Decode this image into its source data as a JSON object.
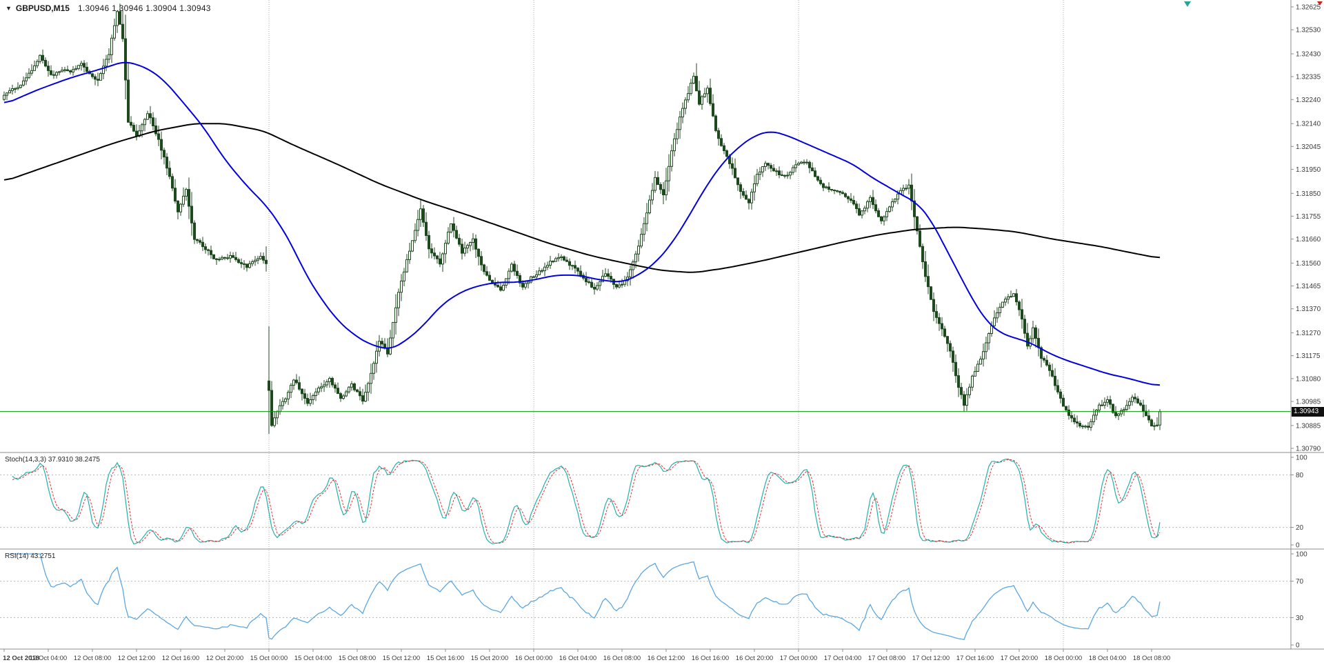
{
  "window": {
    "title": "GBPUSD,M15"
  },
  "header": {
    "symbol_label": "GBPUSD,M15",
    "ohlc_values": "1.30946 1.30946 1.30904 1.30943",
    "dropdown_glyph": "▼"
  },
  "colors": {
    "background": "#ffffff",
    "candle_border": "#1d4a1d",
    "candle_up_fill": "#ffffff",
    "candle_down_fill": "#1d4a1d",
    "ma_fast": "#0000e0",
    "ma_slow": "#000000",
    "bid_line": "#009900",
    "price_tag_bg": "#101010",
    "price_tag_text": "#ffffff",
    "grid_separator": "#a8a8a8",
    "pane_border": "#8c8c8c",
    "level_line": "#b5b5b5",
    "axis_text": "#3a3a3a",
    "stoch_main": "#20b2aa",
    "stoch_signal": "#e03030",
    "rsi_line": "#5aa7e0",
    "shift_marker": "#26a69a",
    "corner_marker": "#cc2222"
  },
  "chart_data": {
    "type": "candlestick",
    "symbol": "GBPUSD",
    "timeframe": "M15",
    "title": "GBPUSD,M15",
    "ohlc": {
      "open": "1.30946",
      "high": "1.30946",
      "low": "1.30904",
      "close": "1.30943"
    },
    "current_price": 1.30943,
    "current_price_label": "1.30943",
    "total_candles": 420,
    "candles_per_day": 96,
    "label_every_n_candles": 16,
    "price_axis_ticks": [
      "1.32625",
      "1.32530",
      "1.32430",
      "1.32335",
      "1.32240",
      "1.32140",
      "1.32045",
      "1.31950",
      "1.31850",
      "1.31755",
      "1.31660",
      "1.31560",
      "1.31465",
      "1.31370",
      "1.31270",
      "1.31175",
      "1.31080",
      "1.30985",
      "1.30885",
      "1.30790"
    ],
    "time_labels": [
      "12 Oct 2018",
      "12 Oct 04:00",
      "12 Oct 08:00",
      "12 Oct 12:00",
      "12 Oct 16:00",
      "12 Oct 20:00",
      "15 Oct 00:00",
      "15 Oct 04:00",
      "15 Oct 08:00",
      "15 Oct 12:00",
      "15 Oct 16:00",
      "15 Oct 20:00",
      "16 Oct 00:00",
      "16 Oct 04:00",
      "16 Oct 08:00",
      "16 Oct 12:00",
      "16 Oct 16:00",
      "16 Oct 20:00",
      "17 Oct 00:00",
      "17 Oct 04:00",
      "17 Oct 08:00",
      "17 Oct 12:00",
      "17 Oct 16:00",
      "17 Oct 20:00",
      "18 Oct 00:00",
      "18 Oct 04:00",
      "18 Oct 08:00"
    ],
    "day_separator_indices": [
      96,
      192,
      288,
      384
    ],
    "price_close_waypoints": [
      [
        0,
        1.3224
      ],
      [
        6,
        1.323
      ],
      [
        13,
        1.3243
      ],
      [
        17,
        1.3233
      ],
      [
        24,
        1.3236
      ],
      [
        28,
        1.324
      ],
      [
        34,
        1.3231
      ],
      [
        38,
        1.3242
      ],
      [
        41,
        1.326
      ],
      [
        43,
        1.325
      ],
      [
        45,
        1.3216
      ],
      [
        48,
        1.321
      ],
      [
        52,
        1.3218
      ],
      [
        56,
        1.3206
      ],
      [
        60,
        1.3192
      ],
      [
        63,
        1.3178
      ],
      [
        66,
        1.3188
      ],
      [
        69,
        1.3166
      ],
      [
        72,
        1.3162
      ],
      [
        76,
        1.3157
      ],
      [
        82,
        1.316
      ],
      [
        88,
        1.3154
      ],
      [
        93,
        1.3158
      ],
      [
        95,
        1.3156
      ],
      [
        96,
        1.3103
      ],
      [
        97,
        1.3089
      ],
      [
        99,
        1.3096
      ],
      [
        102,
        1.3101
      ],
      [
        105,
        1.3107
      ],
      [
        110,
        1.3097
      ],
      [
        114,
        1.3104
      ],
      [
        118,
        1.3109
      ],
      [
        122,
        1.31
      ],
      [
        126,
        1.3104
      ],
      [
        130,
        1.3098
      ],
      [
        133,
        1.3111
      ],
      [
        136,
        1.3125
      ],
      [
        139,
        1.3119
      ],
      [
        143,
        1.3143
      ],
      [
        147,
        1.316
      ],
      [
        151,
        1.3179
      ],
      [
        154,
        1.3163
      ],
      [
        158,
        1.3156
      ],
      [
        162,
        1.3171
      ],
      [
        166,
        1.316
      ],
      [
        170,
        1.3167
      ],
      [
        173,
        1.3156
      ],
      [
        176,
        1.3149
      ],
      [
        180,
        1.3143
      ],
      [
        184,
        1.3155
      ],
      [
        188,
        1.3147
      ],
      [
        191,
        1.3151
      ],
      [
        196,
        1.3153
      ],
      [
        201,
        1.3158
      ],
      [
        206,
        1.3156
      ],
      [
        210,
        1.3151
      ],
      [
        214,
        1.3144
      ],
      [
        218,
        1.3151
      ],
      [
        222,
        1.3146
      ],
      [
        226,
        1.3151
      ],
      [
        230,
        1.3163
      ],
      [
        233,
        1.3176
      ],
      [
        236,
        1.319
      ],
      [
        239,
        1.3184
      ],
      [
        242,
        1.3204
      ],
      [
        245,
        1.3218
      ],
      [
        248,
        1.3227
      ],
      [
        250,
        1.3233
      ],
      [
        252,
        1.3221
      ],
      [
        255,
        1.3228
      ],
      [
        258,
        1.3211
      ],
      [
        261,
        1.3204
      ],
      [
        264,
        1.3196
      ],
      [
        267,
        1.3185
      ],
      [
        270,
        1.318
      ],
      [
        273,
        1.3192
      ],
      [
        276,
        1.3198
      ],
      [
        280,
        1.3195
      ],
      [
        284,
        1.3192
      ],
      [
        287,
        1.3196
      ],
      [
        291,
        1.3197
      ],
      [
        296,
        1.319
      ],
      [
        301,
        1.3186
      ],
      [
        306,
        1.3182
      ],
      [
        310,
        1.3176
      ],
      [
        314,
        1.3184
      ],
      [
        318,
        1.3174
      ],
      [
        322,
        1.318
      ],
      [
        326,
        1.3186
      ],
      [
        328,
        1.3188
      ],
      [
        331,
        1.317
      ],
      [
        334,
        1.3152
      ],
      [
        337,
        1.3136
      ],
      [
        340,
        1.3128
      ],
      [
        343,
        1.3118
      ],
      [
        346,
        1.3104
      ],
      [
        348,
        1.3098
      ],
      [
        351,
        1.311
      ],
      [
        354,
        1.3117
      ],
      [
        358,
        1.3129
      ],
      [
        362,
        1.3139
      ],
      [
        366,
        1.3144
      ],
      [
        369,
        1.3134
      ],
      [
        371,
        1.3122
      ],
      [
        373,
        1.3129
      ],
      [
        376,
        1.3116
      ],
      [
        379,
        1.311
      ],
      [
        381,
        1.3105
      ],
      [
        384,
        1.3097
      ],
      [
        387,
        1.3093
      ],
      [
        390,
        1.3089
      ],
      [
        393,
        1.3087
      ],
      [
        396,
        1.3094
      ],
      [
        400,
        1.3099
      ],
      [
        403,
        1.3093
      ],
      [
        406,
        1.3097
      ],
      [
        409,
        1.3101
      ],
      [
        412,
        1.3096
      ],
      [
        414,
        1.3091
      ],
      [
        416,
        1.3087
      ],
      [
        418,
        1.3089
      ],
      [
        419,
        1.30943
      ]
    ],
    "overlays": [
      {
        "name": "ma-fast",
        "color": "#0000e0",
        "waypoints": [
          [
            0,
            1.3222
          ],
          [
            12,
            1.3228
          ],
          [
            24,
            1.3233
          ],
          [
            36,
            1.3237
          ],
          [
            44,
            1.324
          ],
          [
            52,
            1.3237
          ],
          [
            58,
            1.3232
          ],
          [
            64,
            1.3224
          ],
          [
            72,
            1.3213
          ],
          [
            80,
            1.3199
          ],
          [
            88,
            1.3188
          ],
          [
            95,
            1.318
          ],
          [
            100,
            1.3172
          ],
          [
            105,
            1.3162
          ],
          [
            109,
            1.3152
          ],
          [
            115,
            1.3141
          ],
          [
            121,
            1.3132
          ],
          [
            127,
            1.3126
          ],
          [
            133,
            1.3122
          ],
          [
            140,
            1.312
          ],
          [
            146,
            1.3124
          ],
          [
            152,
            1.313
          ],
          [
            158,
            1.3138
          ],
          [
            164,
            1.3143
          ],
          [
            170,
            1.3146
          ],
          [
            178,
            1.3148
          ],
          [
            186,
            1.3148
          ],
          [
            192,
            1.3149
          ],
          [
            200,
            1.3151
          ],
          [
            208,
            1.3151
          ],
          [
            216,
            1.3149
          ],
          [
            224,
            1.3148
          ],
          [
            230,
            1.3151
          ],
          [
            236,
            1.3156
          ],
          [
            242,
            1.3164
          ],
          [
            248,
            1.3175
          ],
          [
            254,
            1.3187
          ],
          [
            260,
            1.3197
          ],
          [
            266,
            1.3204
          ],
          [
            272,
            1.3209
          ],
          [
            278,
            1.3211
          ],
          [
            284,
            1.3209
          ],
          [
            290,
            1.3206
          ],
          [
            296,
            1.3203
          ],
          [
            302,
            1.32
          ],
          [
            308,
            1.3197
          ],
          [
            314,
            1.3192
          ],
          [
            320,
            1.3188
          ],
          [
            326,
            1.3184
          ],
          [
            331,
            1.3181
          ],
          [
            336,
            1.3174
          ],
          [
            341,
            1.3163
          ],
          [
            346,
            1.3152
          ],
          [
            351,
            1.3141
          ],
          [
            356,
            1.3132
          ],
          [
            361,
            1.3127
          ],
          [
            366,
            1.3125
          ],
          [
            372,
            1.3123
          ],
          [
            378,
            1.3119
          ],
          [
            384,
            1.3116
          ],
          [
            392,
            1.3113
          ],
          [
            400,
            1.311
          ],
          [
            408,
            1.3108
          ],
          [
            414,
            1.3106
          ],
          [
            419,
            1.3105
          ]
        ]
      },
      {
        "name": "ma-slow",
        "color": "#000000",
        "waypoints": [
          [
            0,
            1.319
          ],
          [
            20,
            1.3198
          ],
          [
            40,
            1.3206
          ],
          [
            55,
            1.3211
          ],
          [
            69,
            1.3214
          ],
          [
            80,
            1.3214
          ],
          [
            94,
            1.3211
          ],
          [
            105,
            1.3205
          ],
          [
            121,
            1.3197
          ],
          [
            136,
            1.3189
          ],
          [
            152,
            1.3182
          ],
          [
            168,
            1.3176
          ],
          [
            183,
            1.317
          ],
          [
            198,
            1.3164
          ],
          [
            213,
            1.3159
          ],
          [
            225,
            1.3156
          ],
          [
            238,
            1.3153
          ],
          [
            250,
            1.3152
          ],
          [
            262,
            1.3154
          ],
          [
            275,
            1.3157
          ],
          [
            290,
            1.3161
          ],
          [
            305,
            1.3165
          ],
          [
            318,
            1.3168
          ],
          [
            330,
            1.317
          ],
          [
            345,
            1.3171
          ],
          [
            358,
            1.317
          ],
          [
            367,
            1.3169
          ],
          [
            380,
            1.3166
          ],
          [
            397,
            1.3163
          ],
          [
            410,
            1.316
          ],
          [
            419,
            1.3158
          ]
        ]
      }
    ],
    "indicators": {
      "stoch": {
        "label": "Stoch(14,3,3) 37.9310 38.2475",
        "params": "14,3,3",
        "main_value": "37.9310",
        "signal_value": "38.2475",
        "levels": [
          20,
          80
        ],
        "axis_ticks": [
          100,
          80,
          20,
          0
        ],
        "range": [
          0,
          100
        ],
        "main_color": "#20b2aa",
        "signal_color": "#e03030"
      },
      "rsi": {
        "label": "RSI(14) 43.2751",
        "params": "14",
        "value": "43.2751",
        "levels": [
          30,
          70
        ],
        "axis_ticks": [
          100,
          70,
          30,
          0
        ],
        "range": [
          0,
          100
        ],
        "color": "#5aa7e0"
      }
    },
    "markers": {
      "shift_marker_index": 429,
      "shift_marker_color": "#26a69a"
    }
  }
}
